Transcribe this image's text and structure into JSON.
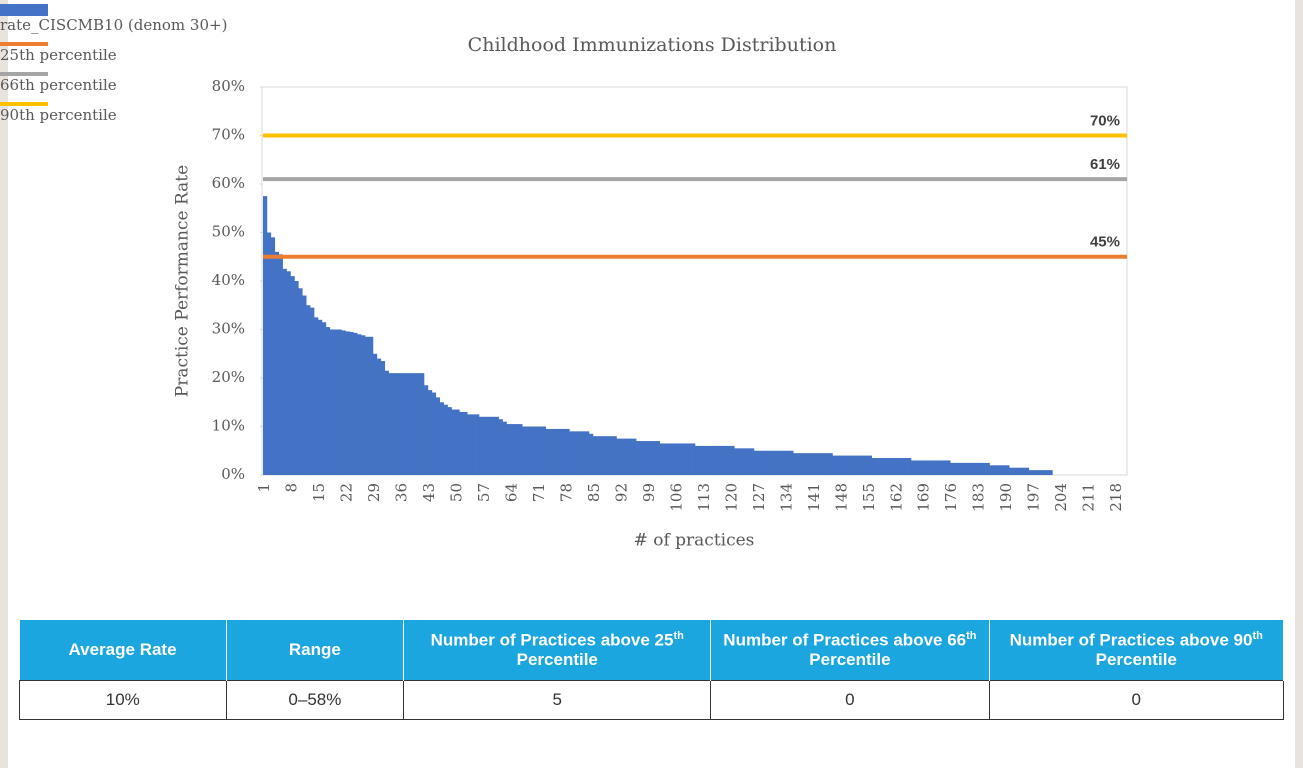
{
  "chart_data": {
    "type": "bar",
    "title": "Childhood Immunizations Distribution",
    "x_label": "# of practices",
    "y_label": "Practice Performance Rate",
    "categories": [
      1,
      null,
      null,
      null,
      null,
      null,
      null,
      8,
      null,
      null,
      null,
      null,
      null,
      null,
      15,
      null,
      null,
      null,
      null,
      null,
      null,
      22,
      null,
      null,
      null,
      null,
      null,
      null,
      29,
      null,
      null,
      null,
      null,
      null,
      null,
      36,
      null,
      null,
      null,
      null,
      null,
      null,
      43,
      null,
      null,
      null,
      null,
      null,
      null,
      50,
      null,
      null,
      null,
      null,
      null,
      null,
      57,
      null,
      null,
      null,
      null,
      null,
      null,
      64,
      null,
      null,
      null,
      null,
      null,
      null,
      71,
      null,
      null,
      null,
      null,
      null,
      null,
      78,
      null,
      null,
      null,
      null,
      null,
      null,
      85,
      null,
      null,
      null,
      null,
      null,
      null,
      92,
      null,
      null,
      null,
      null,
      null,
      null,
      99,
      null,
      null,
      null,
      null,
      null,
      null,
      106,
      null,
      null,
      null,
      null,
      null,
      null,
      113,
      null,
      null,
      null,
      null,
      null,
      null,
      120,
      null,
      null,
      null,
      null,
      null,
      null,
      127,
      null,
      null,
      null,
      null,
      null,
      null,
      134,
      null,
      null,
      null,
      null,
      null,
      null,
      141,
      null,
      null,
      null,
      null,
      null,
      null,
      148,
      null,
      null,
      null,
      null,
      null,
      null,
      155,
      null,
      null,
      null,
      null,
      null,
      null,
      162,
      null,
      null,
      null,
      null,
      null,
      null,
      169,
      null,
      null,
      null,
      null,
      null,
      null,
      176,
      null,
      null,
      null,
      null,
      null,
      null,
      183,
      null,
      null,
      null,
      null,
      null,
      null,
      190,
      null,
      null,
      null,
      null,
      null,
      null,
      197,
      null,
      null,
      null,
      null,
      null,
      null,
      204,
      null,
      null,
      null,
      null,
      null,
      null,
      211,
      null,
      null,
      null,
      null,
      null,
      null,
      218,
      null,
      null
    ],
    "series": [
      {
        "name": "rate_CISCMB10 (denom 30+)",
        "color": "#4472c4",
        "values": [
          57.5,
          50,
          49,
          46,
          45.5,
          42.5,
          42,
          41,
          40,
          38.5,
          37,
          35,
          34.5,
          32.5,
          32,
          31.5,
          30.5,
          30,
          30,
          30,
          29.8,
          29.6,
          29.5,
          29.3,
          29,
          28.8,
          28.5,
          28.5,
          25,
          24,
          23.5,
          21.5,
          21,
          21,
          21,
          21,
          21,
          21,
          21,
          21,
          21,
          18.5,
          17.5,
          17,
          16,
          15,
          14.5,
          14,
          13.5,
          13.5,
          13,
          13,
          12.5,
          12.5,
          12.5,
          12,
          12,
          12,
          12,
          12,
          11.5,
          11,
          10.5,
          10.5,
          10.5,
          10.5,
          10,
          10,
          10,
          10,
          10,
          10,
          9.5,
          9.5,
          9.5,
          9.5,
          9.5,
          9.5,
          9,
          9,
          9,
          9,
          9,
          8.5,
          8,
          8,
          8,
          8,
          8,
          8,
          7.5,
          7.5,
          7.5,
          7.5,
          7.5,
          7,
          7,
          7,
          7,
          7,
          7,
          6.5,
          6.5,
          6.5,
          6.5,
          6.5,
          6.5,
          6.5,
          6.5,
          6.5,
          6,
          6,
          6,
          6,
          6,
          6,
          6,
          6,
          6,
          6,
          5.5,
          5.5,
          5.5,
          5.5,
          5.5,
          5,
          5,
          5,
          5,
          5,
          5,
          5,
          5,
          5,
          5,
          4.5,
          4.5,
          4.5,
          4.5,
          4.5,
          4.5,
          4.5,
          4.5,
          4.5,
          4.5,
          4,
          4,
          4,
          4,
          4,
          4,
          4,
          4,
          4,
          4,
          3.5,
          3.5,
          3.5,
          3.5,
          3.5,
          3.5,
          3.5,
          3.5,
          3.5,
          3.5,
          3,
          3,
          3,
          3,
          3,
          3,
          3,
          3,
          3,
          3,
          2.5,
          2.5,
          2.5,
          2.5,
          2.5,
          2.5,
          2.5,
          2.5,
          2.5,
          2.5,
          2,
          2,
          2,
          2,
          2,
          1.5,
          1.5,
          1.5,
          1.5,
          1.5,
          1,
          1,
          1,
          1,
          1,
          1,
          null,
          null,
          null,
          null,
          null,
          null,
          null,
          null,
          null,
          null,
          null,
          null,
          null,
          null,
          null,
          null,
          null,
          null,
          null
        ]
      }
    ],
    "reference_lines": [
      {
        "name": "25th percentile",
        "color": "#ed7d31",
        "value": 45,
        "value_label": "45%"
      },
      {
        "name": "66th percentile",
        "color": "#a5a5a5",
        "value": 61,
        "value_label": "61%"
      },
      {
        "name": "90th percentile",
        "color": "#ffc000",
        "value": 70,
        "value_label": "70%"
      }
    ],
    "ylim": [
      0,
      80
    ],
    "yticks": [
      {
        "value": 0,
        "label": "0%"
      },
      {
        "value": 10,
        "label": "10%"
      },
      {
        "value": 20,
        "label": "20%"
      },
      {
        "value": 30,
        "label": "30%"
      },
      {
        "value": 40,
        "label": "40%"
      },
      {
        "value": 50,
        "label": "50%"
      },
      {
        "value": 60,
        "label": "60%"
      },
      {
        "value": 70,
        "label": "70%"
      },
      {
        "value": 80,
        "label": "80%"
      }
    ],
    "grid": false,
    "legend": "bottom"
  },
  "table": {
    "header": [
      [
        "Average Rate"
      ],
      [
        "Range"
      ],
      [
        "Number of Practices above 25",
        "th",
        " Percentile"
      ],
      [
        "Number of Practices above 66",
        "th",
        " Percentile"
      ],
      [
        "Number of Practices above 90",
        "th",
        " Percentile"
      ]
    ],
    "rows": [
      [
        "10%",
        "0–58%",
        "5",
        "0",
        "0"
      ]
    ]
  }
}
